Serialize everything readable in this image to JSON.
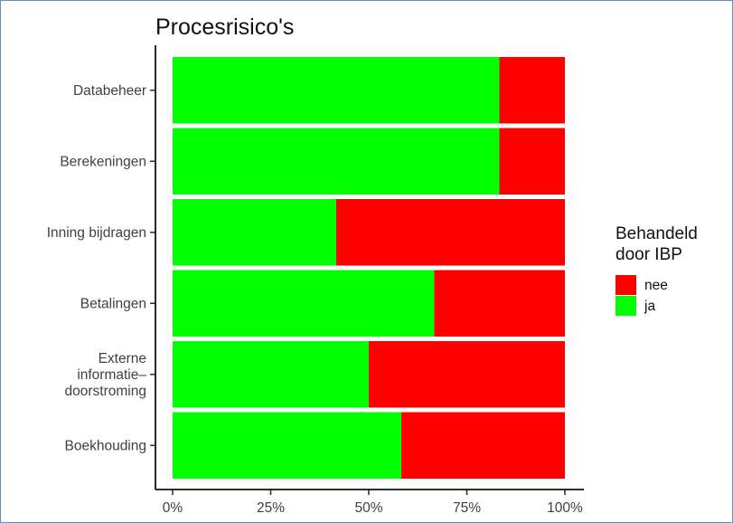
{
  "chart_data": {
    "type": "bar",
    "orientation": "horizontal",
    "stacked": true,
    "normalized": true,
    "title": "Procesrisico's",
    "categories": [
      [
        "Databeheer"
      ],
      [
        "Berekeningen"
      ],
      [
        "Inning bijdragen"
      ],
      [
        "Betalingen"
      ],
      [
        "Externe",
        "informatie–",
        "doorstroming"
      ],
      [
        "Boekhouding"
      ]
    ],
    "series": [
      {
        "name": "ja",
        "color": "#00ff00",
        "values": [
          0.833,
          0.833,
          0.417,
          0.667,
          0.5,
          0.583
        ]
      },
      {
        "name": "nee",
        "color": "#ff0000",
        "values": [
          0.167,
          0.167,
          0.583,
          0.333,
          0.5,
          0.417
        ]
      }
    ],
    "xticks": [
      "0%",
      "25%",
      "50%",
      "75%",
      "100%"
    ],
    "xlim": [
      0,
      1
    ],
    "grid": false,
    "legend": {
      "title": [
        "Behandeld",
        "door IBP"
      ],
      "position": "right",
      "entries": [
        {
          "label": "nee",
          "color": "#ff0000"
        },
        {
          "label": "ja",
          "color": "#00ff00"
        }
      ]
    }
  }
}
